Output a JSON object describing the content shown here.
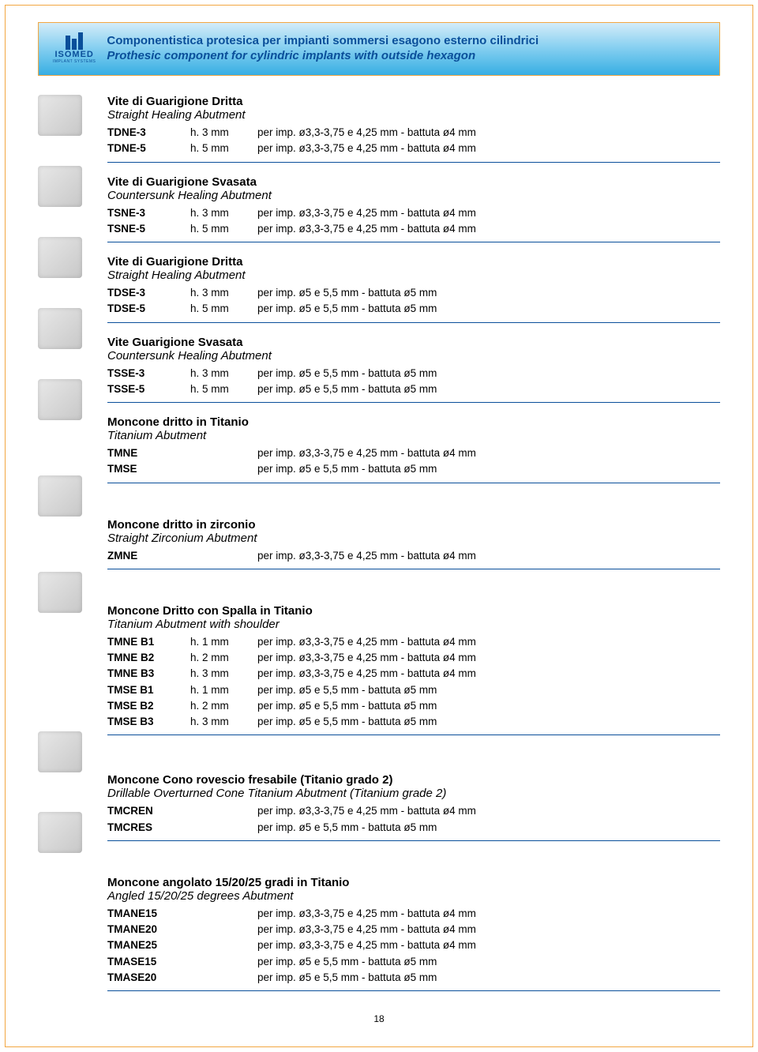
{
  "logo": {
    "name": "ISOMED",
    "sub": "IMPLANT SYSTEMS"
  },
  "banner": {
    "line1": "Componentistica protesica per impianti sommersi esagono esterno cilindrici",
    "line2": "Prothesic component for cylindric implants with outside hexagon"
  },
  "sections": [
    {
      "title_it": "Vite di Guarigione Dritta",
      "title_en": "Straight Healing Abutment",
      "rows": [
        {
          "code": "TDNE-3",
          "dim": "h. 3 mm",
          "spec": "per imp. ø3,3-3,75 e 4,25 mm - battuta ø4 mm"
        },
        {
          "code": "TDNE-5",
          "dim": "h. 5 mm",
          "spec": "per imp. ø3,3-3,75 e 4,25 mm - battuta ø4 mm"
        }
      ]
    },
    {
      "title_it": "Vite di Guarigione Svasata",
      "title_en": "Countersunk Healing Abutment",
      "rows": [
        {
          "code": "TSNE-3",
          "dim": "h. 3 mm",
          "spec": "per imp. ø3,3-3,75 e 4,25 mm - battuta ø4 mm"
        },
        {
          "code": "TSNE-5",
          "dim": "h. 5 mm",
          "spec": "per imp. ø3,3-3,75 e 4,25 mm - battuta ø4 mm"
        }
      ]
    },
    {
      "title_it": "Vite di Guarigione Dritta",
      "title_en": "Straight Healing Abutment",
      "rows": [
        {
          "code": "TDSE-3",
          "dim": "h. 3 mm",
          "spec": "per imp. ø5 e 5,5 mm - battuta ø5 mm"
        },
        {
          "code": "TDSE-5",
          "dim": "h. 5 mm",
          "spec": "per imp. ø5 e 5,5 mm - battuta ø5 mm"
        }
      ]
    },
    {
      "title_it": "Vite Guarigione Svasata",
      "title_en": "Countersunk Healing Abutment",
      "rows": [
        {
          "code": "TSSE-3",
          "dim": "h. 3 mm",
          "spec": "per imp. ø5 e 5,5 mm - battuta ø5 mm"
        },
        {
          "code": "TSSE-5",
          "dim": "h. 5 mm",
          "spec": "per imp. ø5 e 5,5 mm - battuta ø5 mm"
        }
      ]
    },
    {
      "title_it": "Moncone dritto in Titanio",
      "title_en": "Titanium Abutment",
      "rows": [
        {
          "code": "TMNE",
          "dim": "",
          "spec": "per imp. ø3,3-3,75 e 4,25 mm - battuta ø4 mm"
        },
        {
          "code": "TMSE",
          "dim": "",
          "spec": "per imp. ø5 e 5,5 mm - battuta ø5 mm"
        }
      ]
    },
    {
      "title_it": "Moncone dritto in zirconio",
      "title_en": "Straight Zirconium Abutment",
      "rows": [
        {
          "code": "ZMNE",
          "dim": "",
          "spec": "per imp. ø3,3-3,75 e 4,25 mm - battuta ø4 mm"
        }
      ]
    },
    {
      "title_it": "Moncone Dritto con Spalla in Titanio",
      "title_en": "Titanium Abutment with shoulder",
      "rows": [
        {
          "code": "TMNE B1",
          "dim": "h. 1 mm",
          "spec": "per imp. ø3,3-3,75 e 4,25 mm - battuta ø4 mm"
        },
        {
          "code": "TMNE B2",
          "dim": "h. 2 mm",
          "spec": "per imp. ø3,3-3,75 e 4,25 mm - battuta ø4 mm"
        },
        {
          "code": "TMNE B3",
          "dim": "h. 3 mm",
          "spec": "per imp. ø3,3-3,75 e 4,25 mm - battuta ø4 mm"
        },
        {
          "code": "TMSE B1",
          "dim": "h. 1 mm",
          "spec": "per imp. ø5 e 5,5 mm - battuta ø5 mm"
        },
        {
          "code": "TMSE B2",
          "dim": "h. 2 mm",
          "spec": "per imp. ø5 e 5,5 mm - battuta ø5 mm"
        },
        {
          "code": "TMSE B3",
          "dim": "h. 3 mm",
          "spec": "per imp. ø5 e 5,5 mm - battuta ø5 mm"
        }
      ]
    },
    {
      "title_it": "Moncone Cono rovescio fresabile (Titanio grado 2)",
      "title_en": "Drillable Overturned Cone Titanium Abutment (Titanium grade 2)",
      "rows": [
        {
          "code": "TMCREN",
          "dim": "",
          "spec": "per imp. ø3,3-3,75 e 4,25 mm - battuta ø4 mm"
        },
        {
          "code": "TMCRES",
          "dim": "",
          "spec": "per imp. ø5 e 5,5 mm - battuta ø5 mm"
        }
      ]
    },
    {
      "title_it": "Moncone angolato 15/20/25 gradi in Titanio",
      "title_en": "Angled 15/20/25 degrees Abutment",
      "rows": [
        {
          "code": "TMANE15",
          "dim": "",
          "spec": "per imp. ø3,3-3,75 e 4,25 mm - battuta ø4 mm"
        },
        {
          "code": "TMANE20",
          "dim": "",
          "spec": "per imp. ø3,3-3,75 e 4,25 mm - battuta ø4 mm"
        },
        {
          "code": "TMANE25",
          "dim": "",
          "spec": "per imp. ø3,3-3,75 e 4,25 mm - battuta ø4 mm"
        },
        {
          "code": "TMASE15",
          "dim": "",
          "spec": "per imp. ø5 e 5,5 mm - battuta ø5 mm"
        },
        {
          "code": "TMASE20",
          "dim": "",
          "spec": "per imp. ø5 e 5,5 mm - battuta ø5 mm"
        }
      ]
    }
  ],
  "colors": {
    "brand_blue": "#0a4f9a",
    "accent_orange": "#f2a742",
    "gradient_top": "#d4ecf8",
    "gradient_mid": "#8ad1f1",
    "gradient_bot": "#36aee3"
  },
  "page_number": "18",
  "thumb_gaps": [
    38,
    38,
    38,
    38,
    38,
    0,
    0,
    0,
    0
  ]
}
